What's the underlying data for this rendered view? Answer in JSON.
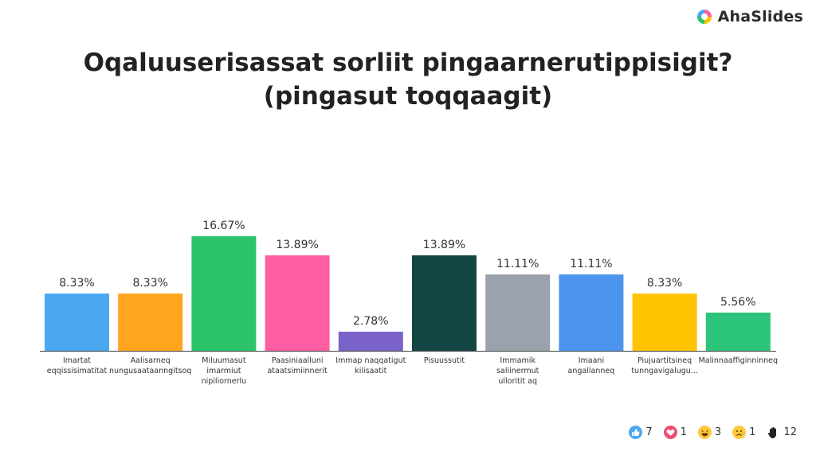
{
  "brand": {
    "name": "AhaSlides",
    "icon": "ahaslides-logo-icon"
  },
  "title_line1": "Oqaluuserisassat sorliit pingaarnerutippisigit?",
  "title_line2": "(pingasut toqqaagit)",
  "chart_data": {
    "type": "bar",
    "categories": [
      [
        "Imartat",
        "eqqissisimatitat"
      ],
      [
        "Aalisarneq",
        "nungusaataanngitsoq"
      ],
      [
        "Miluumasut",
        "imarmiut",
        "nipiliornerlu"
      ],
      [
        "Paasiniaalluni",
        "ataatsimiinnerit"
      ],
      [
        "Immap naqqatigut",
        "kilisaatit"
      ],
      [
        "Pisuussutit"
      ],
      [
        "Immamik",
        "saliinermut",
        "ulloritit aq"
      ],
      [
        "Imaani",
        "angallanneq"
      ],
      [
        "Piujuartitsineq",
        "tunngavigalugu..."
      ],
      [
        "Malinnaaffiginninneq"
      ]
    ],
    "values": [
      8.33,
      8.33,
      16.67,
      13.89,
      2.78,
      13.89,
      11.11,
      11.11,
      8.33,
      5.56
    ],
    "value_labels": [
      "8.33%",
      "8.33%",
      "16.67%",
      "13.89%",
      "2.78%",
      "13.89%",
      "11.11%",
      "11.11%",
      "8.33%",
      "5.56%"
    ],
    "colors": [
      "#4aa8f0",
      "#ffa51f",
      "#2cc36b",
      "#ff5fa2",
      "#7b62c9",
      "#144644",
      "#9aa3ad",
      "#4d94ef",
      "#ffc300",
      "#2cc37a"
    ],
    "ylim": [
      0,
      16.67
    ]
  },
  "reactions": [
    {
      "icon": "thumbs-up-icon",
      "count": "7"
    },
    {
      "icon": "heart-icon",
      "count": "1"
    },
    {
      "icon": "laugh-icon",
      "count": "3"
    },
    {
      "icon": "sad-icon",
      "count": "1"
    },
    {
      "icon": "hand-icon",
      "count": "12"
    }
  ]
}
